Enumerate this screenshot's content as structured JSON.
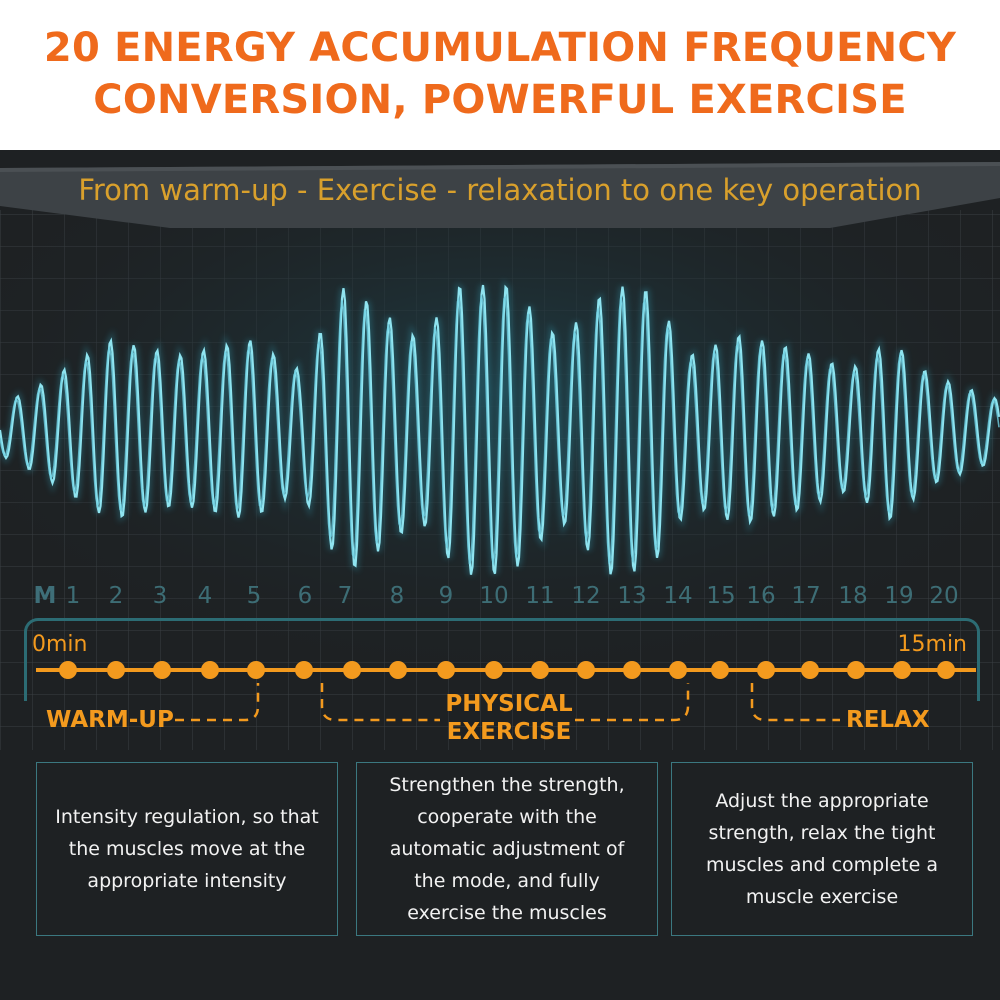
{
  "headline": {
    "line1": "20 ENERGY ACCUMULATION FREQUENCY",
    "line2": "CONVERSION, POWERFUL EXERCISE"
  },
  "subtitle": "From warm-up - Exercise - relaxation to one key operation",
  "scale": {
    "mode_letter": "M",
    "numbers": [
      "1",
      "2",
      "3",
      "4",
      "5",
      "6",
      "7",
      "8",
      "9",
      "10",
      "11",
      "12",
      "13",
      "14",
      "15",
      "16",
      "17",
      "18",
      "19",
      "20"
    ]
  },
  "timeline": {
    "start": "0min",
    "end": "15min"
  },
  "phases": {
    "warmup": "WARM-UP",
    "exercise_line1": "PHYSICAL",
    "exercise_line2": "EXERCISE",
    "relax": "RELAX"
  },
  "descriptions": {
    "warmup": [
      "Intensity regulation, so that",
      "the muscles move at the",
      "appropriate intensity"
    ],
    "exercise": [
      "Strengthen the strength,",
      "cooperate with the",
      "automatic adjustment of",
      "the mode, and fully",
      "exercise the muscles"
    ],
    "relax": [
      "Adjust the appropriate",
      "strength, relax the tight",
      "muscles and complete a",
      "muscle exercise"
    ]
  },
  "colors": {
    "headline": "#ef6a1c",
    "subtitle": "#d9a02c",
    "timeline": "#f39a1e",
    "wave": "#7fdcec",
    "frame": "#2c6c74",
    "panel": "#1e2123"
  }
}
